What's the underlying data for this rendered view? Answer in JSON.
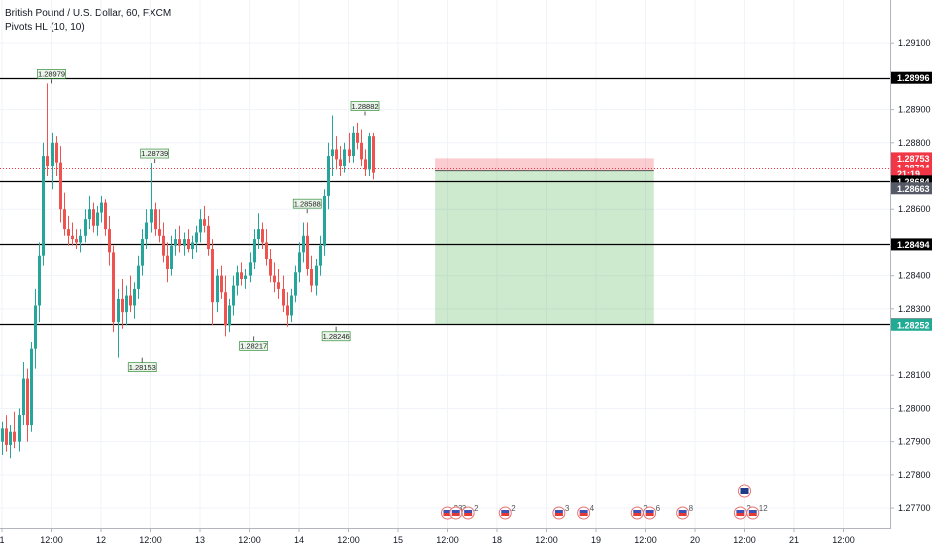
{
  "header": {
    "symbol_line": "British Pound / U.S. Dollar, 60, FXCM",
    "indicator_line": "Pivots HL (10, 10)"
  },
  "chart_data": {
    "type": "candlestick",
    "y_range": [
      1.2764,
      1.2923
    ],
    "y_ticks": [
      "1.29100",
      "1.28900",
      "1.28800",
      "1.28600",
      "1.28400",
      "1.28300",
      "1.28100",
      "1.28000",
      "1.27900",
      "1.27800",
      "1.27700"
    ],
    "x_ticks": [
      {
        "label": "1",
        "date": "2020-07-14 00:00"
      },
      {
        "label": "12:00",
        "date": "2020-07-14 12:00"
      },
      {
        "label": "12",
        "date": "2020-07-15 00:00"
      },
      {
        "label": "12:00",
        "date": "2020-07-15 12:00"
      },
      {
        "label": "13",
        "date": "2020-07-16 00:00"
      },
      {
        "label": "12:00",
        "date": "2020-07-16 12:00"
      },
      {
        "label": "14",
        "date": "2020-07-17 00:00"
      },
      {
        "label": "12:00",
        "date": "2020-07-17 12:00"
      },
      {
        "label": "15",
        "date": "2020-07-18 00:00"
      },
      {
        "label": "12:00",
        "date": "2020-07-18 12:00"
      },
      {
        "label": "18",
        "date": "2020-07-19 00:00"
      },
      {
        "label": "12:00",
        "date": "2020-07-19 12:00"
      },
      {
        "label": "19",
        "date": "2020-07-20 00:00"
      },
      {
        "label": "12:00",
        "date": "2020-07-20 12:00"
      },
      {
        "label": "20",
        "date": "2020-07-21 00:00"
      },
      {
        "label": "12:00",
        "date": "2020-07-21 12:00"
      },
      {
        "label": "21",
        "date": "2020-07-22 00:00"
      },
      {
        "label": "12:00",
        "date": "2020-07-22 12:00"
      }
    ],
    "horizontal_lines": [
      1.28996,
      1.28684,
      1.28494,
      1.28253
    ],
    "current_price": 1.28724,
    "price_labels": [
      {
        "text": "1.28996",
        "value": 1.28996,
        "color": "#000000"
      },
      {
        "text": "1.28753",
        "value": 1.28753,
        "color": "#f23645"
      },
      {
        "text": "1.28724",
        "value": 1.28724,
        "color": "#f23645"
      },
      {
        "text": "21:19",
        "value": 1.28707,
        "color": "#f23645"
      },
      {
        "text": "1.28684",
        "value": 1.28684,
        "color": "#000000"
      },
      {
        "text": "1.28663",
        "value": 1.28663,
        "color": "#555a66"
      },
      {
        "text": "1.28494",
        "value": 1.28494,
        "color": "#000000"
      },
      {
        "text": "1.28253",
        "value": 1.28253,
        "color": "#000000"
      },
      {
        "text": "1.28252",
        "value": 1.28252,
        "color": "#22ab94"
      }
    ],
    "position_tool": {
      "type": "short",
      "entry": 1.28716,
      "stop": 1.28753,
      "target": 1.28252,
      "start": "2020-07-18 09:00",
      "end": "2020-07-20 14:00"
    },
    "pivots": [
      {
        "text": "1.28979",
        "value": 1.28979,
        "date": "2020-07-14 12:00",
        "kind": "high"
      },
      {
        "text": "1.28739",
        "value": 1.28739,
        "date": "2020-07-15 13:00",
        "kind": "high"
      },
      {
        "text": "1.28153",
        "value": 1.28153,
        "date": "2020-07-15 10:00",
        "kind": "low"
      },
      {
        "text": "1.28588",
        "value": 1.28588,
        "date": "2020-07-17 02:00",
        "kind": "high"
      },
      {
        "text": "1.28217",
        "value": 1.28217,
        "date": "2020-07-16 13:00",
        "kind": "low"
      },
      {
        "text": "1.28246",
        "value": 1.28246,
        "date": "2020-07-17 09:00",
        "kind": "low"
      },
      {
        "text": "1.28882",
        "value": 1.28882,
        "date": "2020-07-17 16:00",
        "kind": "high"
      }
    ],
    "events": [
      {
        "date": "2020-07-18 12:00",
        "count": "33"
      },
      {
        "date": "2020-07-18 14:00",
        "count": "3"
      },
      {
        "date": "2020-07-18 17:00",
        "count": "2"
      },
      {
        "date": "2020-07-19 02:00",
        "count": "2"
      },
      {
        "date": "2020-07-19 15:00",
        "count": "3"
      },
      {
        "date": "2020-07-19 21:00",
        "count": "4"
      },
      {
        "date": "2020-07-20 10:00",
        "count": "2"
      },
      {
        "date": "2020-07-20 13:00",
        "count": "6"
      },
      {
        "date": "2020-07-20 21:00",
        "count": "8"
      },
      {
        "date": "2020-07-21 11:00",
        "count": "2"
      },
      {
        "date": "2020-07-21 14:00",
        "count": "12"
      }
    ],
    "candles": [
      {
        "t": "2020-07-13 23:00",
        "o": 1.27985,
        "h": 1.28,
        "l": 1.2787,
        "c": 1.279
      },
      {
        "t": "2020-07-14 00:00",
        "o": 1.279,
        "h": 1.2796,
        "l": 1.2786,
        "c": 1.2794
      },
      {
        "t": "2020-07-14 01:00",
        "o": 1.2794,
        "h": 1.2798,
        "l": 1.2787,
        "c": 1.2789
      },
      {
        "t": "2020-07-14 02:00",
        "o": 1.2789,
        "h": 1.2795,
        "l": 1.2785,
        "c": 1.2793
      },
      {
        "t": "2020-07-14 03:00",
        "o": 1.2793,
        "h": 1.2799,
        "l": 1.2788,
        "c": 1.279
      },
      {
        "t": "2020-07-14 04:00",
        "o": 1.279,
        "h": 1.28,
        "l": 1.2787,
        "c": 1.2798
      },
      {
        "t": "2020-07-14 05:00",
        "o": 1.2798,
        "h": 1.2814,
        "l": 1.2795,
        "c": 1.2809
      },
      {
        "t": "2020-07-14 06:00",
        "o": 1.2809,
        "h": 1.2812,
        "l": 1.279,
        "c": 1.2795
      },
      {
        "t": "2020-07-14 07:00",
        "o": 1.2795,
        "h": 1.282,
        "l": 1.2793,
        "c": 1.2818
      },
      {
        "t": "2020-07-14 08:00",
        "o": 1.2818,
        "h": 1.2836,
        "l": 1.2812,
        "c": 1.2831
      },
      {
        "t": "2020-07-14 09:00",
        "o": 1.2831,
        "h": 1.285,
        "l": 1.2826,
        "c": 1.2846
      },
      {
        "t": "2020-07-14 10:00",
        "o": 1.2846,
        "h": 1.288,
        "l": 1.2843,
        "c": 1.2876
      },
      {
        "t": "2020-07-14 11:00",
        "o": 1.2876,
        "h": 1.28979,
        "l": 1.287,
        "c": 1.2873
      },
      {
        "t": "2020-07-14 12:00",
        "o": 1.2873,
        "h": 1.2883,
        "l": 1.2866,
        "c": 1.288
      },
      {
        "t": "2020-07-14 13:00",
        "o": 1.288,
        "h": 1.2882,
        "l": 1.287,
        "c": 1.2874
      },
      {
        "t": "2020-07-14 14:00",
        "o": 1.2874,
        "h": 1.2879,
        "l": 1.2856,
        "c": 1.286
      },
      {
        "t": "2020-07-14 15:00",
        "o": 1.286,
        "h": 1.2865,
        "l": 1.2852,
        "c": 1.2854
      },
      {
        "t": "2020-07-14 16:00",
        "o": 1.2854,
        "h": 1.2858,
        "l": 1.2849,
        "c": 1.2852
      },
      {
        "t": "2020-07-14 17:00",
        "o": 1.2852,
        "h": 1.2856,
        "l": 1.2849,
        "c": 1.2851
      },
      {
        "t": "2020-07-14 18:00",
        "o": 1.2851,
        "h": 1.2854,
        "l": 1.2848,
        "c": 1.285
      },
      {
        "t": "2020-07-14 19:00",
        "o": 1.285,
        "h": 1.2854,
        "l": 1.2847,
        "c": 1.2852
      },
      {
        "t": "2020-07-14 20:00",
        "o": 1.2852,
        "h": 1.286,
        "l": 1.285,
        "c": 1.2857
      },
      {
        "t": "2020-07-14 21:00",
        "o": 1.2857,
        "h": 1.2864,
        "l": 1.2854,
        "c": 1.286
      },
      {
        "t": "2020-07-14 22:00",
        "o": 1.286,
        "h": 1.2862,
        "l": 1.2853,
        "c": 1.2855
      },
      {
        "t": "2020-07-14 23:00",
        "o": 1.2855,
        "h": 1.2861,
        "l": 1.2852,
        "c": 1.2859
      },
      {
        "t": "2020-07-15 00:00",
        "o": 1.2859,
        "h": 1.2864,
        "l": 1.2856,
        "c": 1.2862
      },
      {
        "t": "2020-07-15 01:00",
        "o": 1.2862,
        "h": 1.2863,
        "l": 1.2852,
        "c": 1.2854
      },
      {
        "t": "2020-07-15 02:00",
        "o": 1.2854,
        "h": 1.2858,
        "l": 1.2843,
        "c": 1.2847
      },
      {
        "t": "2020-07-15 03:00",
        "o": 1.2847,
        "h": 1.2849,
        "l": 1.2823,
        "c": 1.2826
      },
      {
        "t": "2020-07-15 04:00",
        "o": 1.2826,
        "h": 1.2836,
        "l": 1.28153,
        "c": 1.2833
      },
      {
        "t": "2020-07-15 05:00",
        "o": 1.2833,
        "h": 1.2839,
        "l": 1.2824,
        "c": 1.2829
      },
      {
        "t": "2020-07-15 06:00",
        "o": 1.2829,
        "h": 1.2837,
        "l": 1.2825,
        "c": 1.2834
      },
      {
        "t": "2020-07-15 07:00",
        "o": 1.2834,
        "h": 1.284,
        "l": 1.2829,
        "c": 1.2831
      },
      {
        "t": "2020-07-15 08:00",
        "o": 1.2831,
        "h": 1.2838,
        "l": 1.2827,
        "c": 1.2836
      },
      {
        "t": "2020-07-15 09:00",
        "o": 1.2836,
        "h": 1.2846,
        "l": 1.2833,
        "c": 1.2843
      },
      {
        "t": "2020-07-15 10:00",
        "o": 1.2843,
        "h": 1.2854,
        "l": 1.284,
        "c": 1.2851
      },
      {
        "t": "2020-07-15 11:00",
        "o": 1.2851,
        "h": 1.286,
        "l": 1.2848,
        "c": 1.2856
      },
      {
        "t": "2020-07-15 12:00",
        "o": 1.2856,
        "h": 1.28739,
        "l": 1.2853,
        "c": 1.286
      },
      {
        "t": "2020-07-15 13:00",
        "o": 1.286,
        "h": 1.2862,
        "l": 1.2852,
        "c": 1.2854
      },
      {
        "t": "2020-07-15 14:00",
        "o": 1.2854,
        "h": 1.286,
        "l": 1.285,
        "c": 1.2852
      },
      {
        "t": "2020-07-15 15:00",
        "o": 1.2852,
        "h": 1.2856,
        "l": 1.2844,
        "c": 1.2846
      },
      {
        "t": "2020-07-15 16:00",
        "o": 1.2846,
        "h": 1.285,
        "l": 1.2838,
        "c": 1.2842
      },
      {
        "t": "2020-07-15 17:00",
        "o": 1.2842,
        "h": 1.2852,
        "l": 1.284,
        "c": 1.2849
      },
      {
        "t": "2020-07-15 18:00",
        "o": 1.2849,
        "h": 1.2854,
        "l": 1.2846,
        "c": 1.2851
      },
      {
        "t": "2020-07-15 19:00",
        "o": 1.2851,
        "h": 1.2855,
        "l": 1.2847,
        "c": 1.2849
      },
      {
        "t": "2020-07-15 20:00",
        "o": 1.2849,
        "h": 1.2853,
        "l": 1.2846,
        "c": 1.2851
      },
      {
        "t": "2020-07-15 21:00",
        "o": 1.2851,
        "h": 1.2854,
        "l": 1.2847,
        "c": 1.2848
      },
      {
        "t": "2020-07-15 22:00",
        "o": 1.2848,
        "h": 1.2852,
        "l": 1.2845,
        "c": 1.285
      },
      {
        "t": "2020-07-15 23:00",
        "o": 1.285,
        "h": 1.2855,
        "l": 1.2847,
        "c": 1.2853
      },
      {
        "t": "2020-07-16 00:00",
        "o": 1.2853,
        "h": 1.286,
        "l": 1.285,
        "c": 1.2857
      },
      {
        "t": "2020-07-16 01:00",
        "o": 1.2857,
        "h": 1.2861,
        "l": 1.2853,
        "c": 1.2855
      },
      {
        "t": "2020-07-16 02:00",
        "o": 1.2855,
        "h": 1.2858,
        "l": 1.2846,
        "c": 1.2848
      },
      {
        "t": "2020-07-16 03:00",
        "o": 1.2848,
        "h": 1.2851,
        "l": 1.2825,
        "c": 1.2832
      },
      {
        "t": "2020-07-16 04:00",
        "o": 1.2832,
        "h": 1.2842,
        "l": 1.2829,
        "c": 1.284
      },
      {
        "t": "2020-07-16 05:00",
        "o": 1.284,
        "h": 1.2843,
        "l": 1.2833,
        "c": 1.2835
      },
      {
        "t": "2020-07-16 06:00",
        "o": 1.2835,
        "h": 1.284,
        "l": 1.28217,
        "c": 1.2825
      },
      {
        "t": "2020-07-16 07:00",
        "o": 1.2825,
        "h": 1.2833,
        "l": 1.2823,
        "c": 1.2831
      },
      {
        "t": "2020-07-16 08:00",
        "o": 1.2831,
        "h": 1.284,
        "l": 1.2828,
        "c": 1.2837
      },
      {
        "t": "2020-07-16 09:00",
        "o": 1.2837,
        "h": 1.2843,
        "l": 1.2834,
        "c": 1.2841
      },
      {
        "t": "2020-07-16 10:00",
        "o": 1.2841,
        "h": 1.2844,
        "l": 1.2837,
        "c": 1.2839
      },
      {
        "t": "2020-07-16 11:00",
        "o": 1.2839,
        "h": 1.2842,
        "l": 1.2836,
        "c": 1.284
      },
      {
        "t": "2020-07-16 12:00",
        "o": 1.284,
        "h": 1.2847,
        "l": 1.2838,
        "c": 1.2844
      },
      {
        "t": "2020-07-16 13:00",
        "o": 1.2844,
        "h": 1.2854,
        "l": 1.2842,
        "c": 1.2851
      },
      {
        "t": "2020-07-16 14:00",
        "o": 1.2851,
        "h": 1.28588,
        "l": 1.2848,
        "c": 1.2854
      },
      {
        "t": "2020-07-16 15:00",
        "o": 1.2854,
        "h": 1.2856,
        "l": 1.2848,
        "c": 1.285
      },
      {
        "t": "2020-07-16 16:00",
        "o": 1.285,
        "h": 1.2854,
        "l": 1.2843,
        "c": 1.2845
      },
      {
        "t": "2020-07-16 17:00",
        "o": 1.2845,
        "h": 1.2848,
        "l": 1.2838,
        "c": 1.284
      },
      {
        "t": "2020-07-16 18:00",
        "o": 1.284,
        "h": 1.2844,
        "l": 1.2835,
        "c": 1.2838
      },
      {
        "t": "2020-07-16 19:00",
        "o": 1.2838,
        "h": 1.2842,
        "l": 1.2833,
        "c": 1.2836
      },
      {
        "t": "2020-07-16 20:00",
        "o": 1.2836,
        "h": 1.284,
        "l": 1.2829,
        "c": 1.2831
      },
      {
        "t": "2020-07-16 21:00",
        "o": 1.2831,
        "h": 1.2835,
        "l": 1.28246,
        "c": 1.2828
      },
      {
        "t": "2020-07-16 22:00",
        "o": 1.2828,
        "h": 1.2836,
        "l": 1.2826,
        "c": 1.2834
      },
      {
        "t": "2020-07-16 23:00",
        "o": 1.2834,
        "h": 1.2843,
        "l": 1.2832,
        "c": 1.2841
      },
      {
        "t": "2020-07-17 00:00",
        "o": 1.2841,
        "h": 1.285,
        "l": 1.2838,
        "c": 1.2847
      },
      {
        "t": "2020-07-17 01:00",
        "o": 1.2847,
        "h": 1.2856,
        "l": 1.2844,
        "c": 1.2852
      },
      {
        "t": "2020-07-17 02:00",
        "o": 1.2852,
        "h": 1.2856,
        "l": 1.284,
        "c": 1.2842
      },
      {
        "t": "2020-07-17 03:00",
        "o": 1.2842,
        "h": 1.2846,
        "l": 1.2835,
        "c": 1.2837
      },
      {
        "t": "2020-07-17 04:00",
        "o": 1.2837,
        "h": 1.2845,
        "l": 1.2834,
        "c": 1.2843
      },
      {
        "t": "2020-07-17 05:00",
        "o": 1.2843,
        "h": 1.2852,
        "l": 1.284,
        "c": 1.2849
      },
      {
        "t": "2020-07-17 06:00",
        "o": 1.2849,
        "h": 1.2866,
        "l": 1.2846,
        "c": 1.2864
      },
      {
        "t": "2020-07-17 07:00",
        "o": 1.2864,
        "h": 1.288,
        "l": 1.286,
        "c": 1.2876
      },
      {
        "t": "2020-07-17 08:00",
        "o": 1.2876,
        "h": 1.28882,
        "l": 1.287,
        "c": 1.2878
      },
      {
        "t": "2020-07-17 09:00",
        "o": 1.2878,
        "h": 1.2882,
        "l": 1.2872,
        "c": 1.2875
      },
      {
        "t": "2020-07-17 10:00",
        "o": 1.2875,
        "h": 1.2879,
        "l": 1.287,
        "c": 1.2873
      },
      {
        "t": "2020-07-17 11:00",
        "o": 1.2873,
        "h": 1.288,
        "l": 1.2871,
        "c": 1.2878
      },
      {
        "t": "2020-07-17 12:00",
        "o": 1.2878,
        "h": 1.2883,
        "l": 1.2874,
        "c": 1.2876
      },
      {
        "t": "2020-07-17 13:00",
        "o": 1.2876,
        "h": 1.2885,
        "l": 1.2874,
        "c": 1.2883
      },
      {
        "t": "2020-07-17 14:00",
        "o": 1.2883,
        "h": 1.2886,
        "l": 1.2878,
        "c": 1.288
      },
      {
        "t": "2020-07-17 15:00",
        "o": 1.288,
        "h": 1.2884,
        "l": 1.2873,
        "c": 1.2875
      },
      {
        "t": "2020-07-17 16:00",
        "o": 1.2875,
        "h": 1.2878,
        "l": 1.287,
        "c": 1.2872
      },
      {
        "t": "2020-07-17 17:00",
        "o": 1.2872,
        "h": 1.2883,
        "l": 1.287,
        "c": 1.2882
      },
      {
        "t": "2020-07-17 18:00",
        "o": 1.2882,
        "h": 1.2883,
        "l": 1.2869,
        "c": 1.2871
      }
    ]
  }
}
